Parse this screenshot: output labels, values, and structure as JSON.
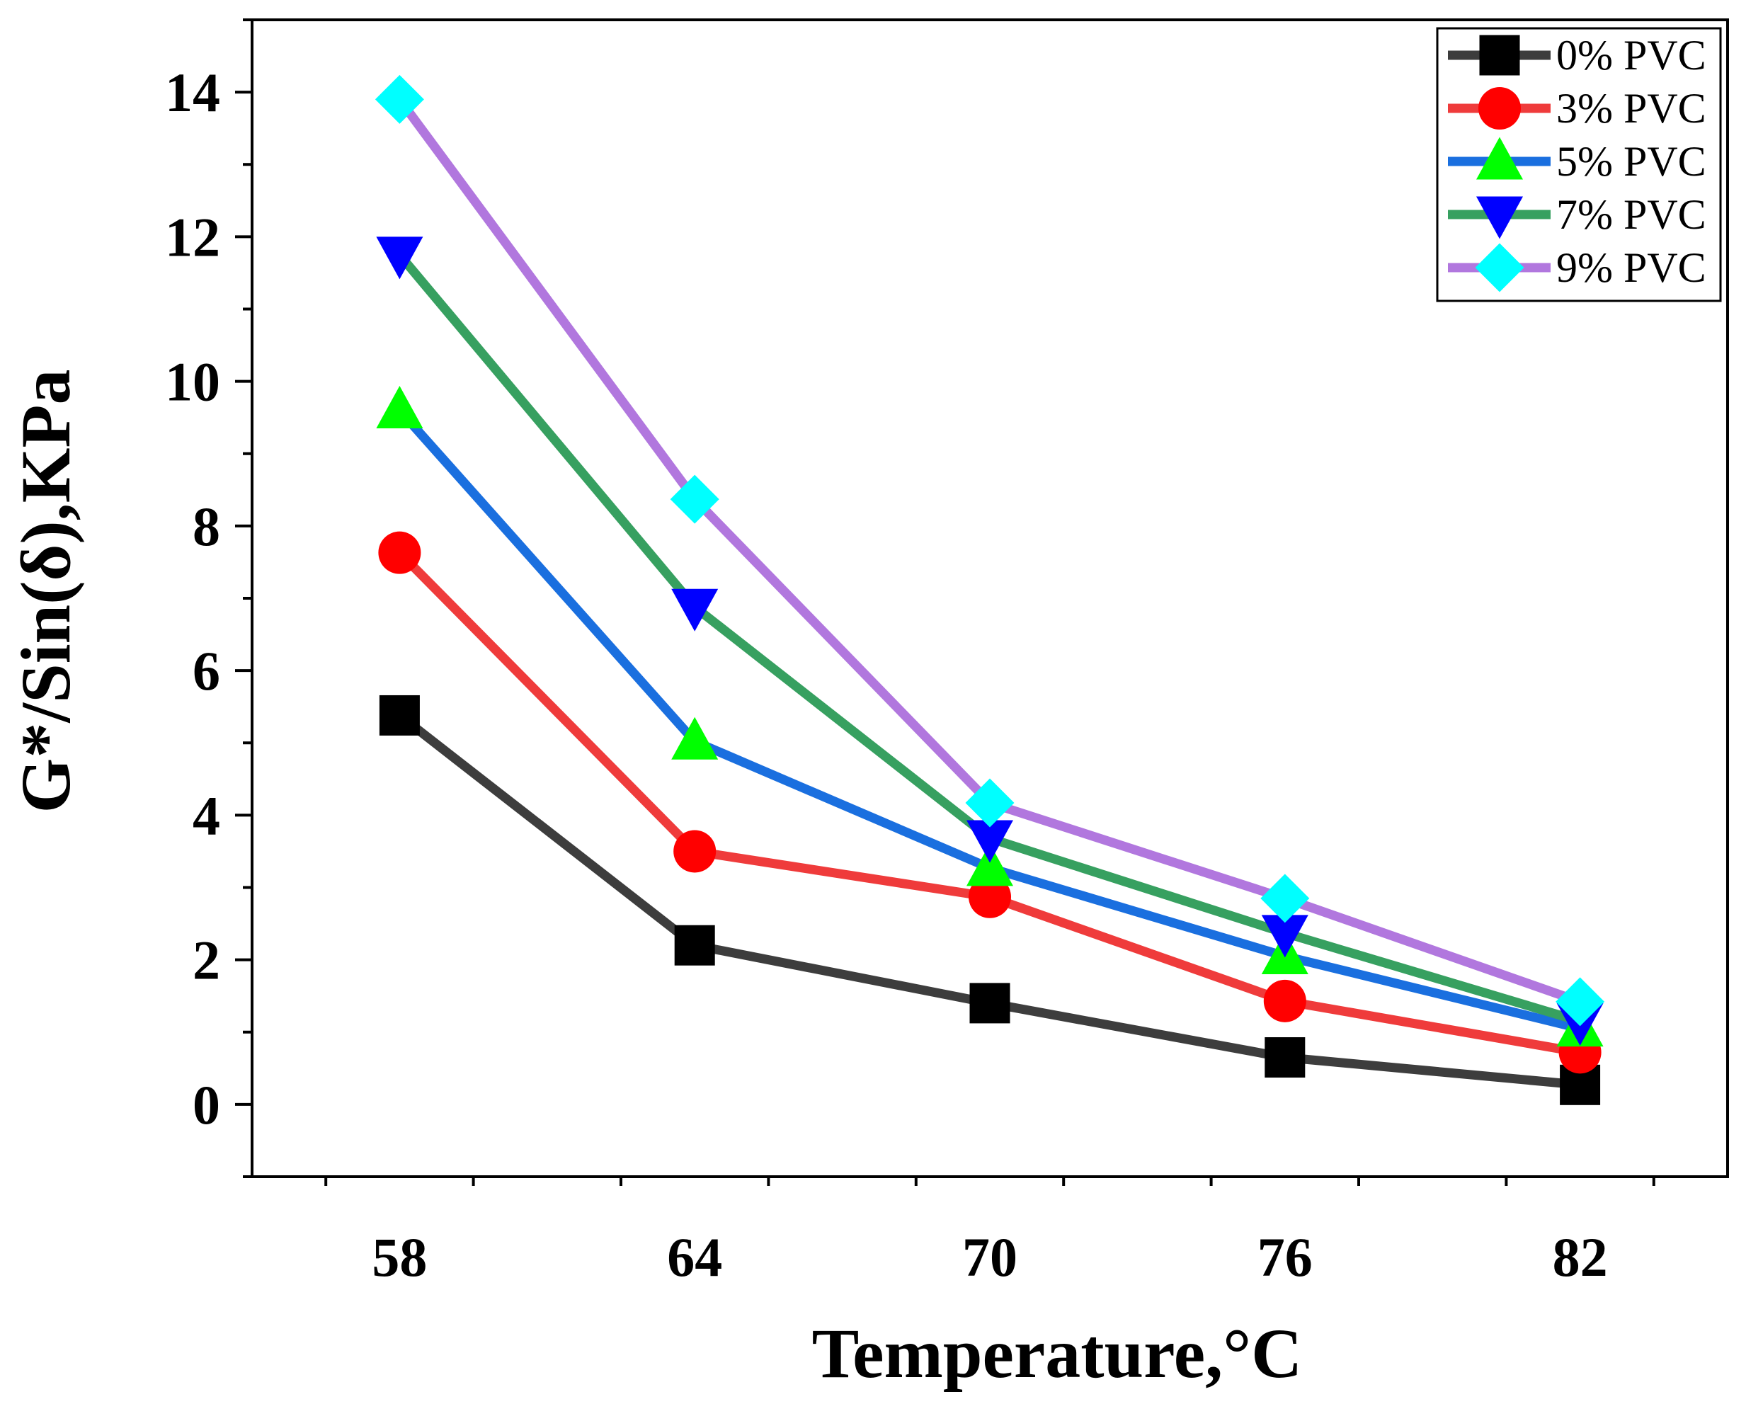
{
  "chart_data": {
    "type": "line",
    "title": "",
    "xlabel": "Temperature,°C",
    "ylabel": "G*/Sin(δ),KPa",
    "categories": [
      "58",
      "64",
      "70",
      "76",
      "82"
    ],
    "x": [
      58,
      64,
      70,
      76,
      82
    ],
    "xlim": [
      55,
      85
    ],
    "ylim": [
      -1,
      15
    ],
    "yticks": [
      0,
      2,
      4,
      6,
      8,
      10,
      12,
      14
    ],
    "ytick_labels": [
      "0",
      "2",
      "4",
      "6",
      "8",
      "10",
      "12",
      "14"
    ],
    "grid": false,
    "legend_position": "top-right",
    "series": [
      {
        "name": "0% PVC",
        "values": [
          5.38,
          2.2,
          1.4,
          0.65,
          0.27
        ],
        "color": "#3d3d3d",
        "marker": "square",
        "marker_color": "#000000"
      },
      {
        "name": "3% PVC",
        "values": [
          7.63,
          3.5,
          2.87,
          1.43,
          0.72
        ],
        "color": "#ef3b3b",
        "marker": "circle",
        "marker_color": "#ff0000"
      },
      {
        "name": "5% PVC",
        "values": [
          9.6,
          5.02,
          3.27,
          2.05,
          1.05
        ],
        "color": "#1a6fdf",
        "marker": "triangle-up",
        "marker_color": "#00ff00"
      },
      {
        "name": "7% PVC",
        "values": [
          11.75,
          6.88,
          3.68,
          2.37,
          1.15
        ],
        "color": "#37a060",
        "marker": "triangle-down",
        "marker_color": "#0000ff"
      },
      {
        "name": "9% PVC",
        "values": [
          13.9,
          8.37,
          4.17,
          2.85,
          1.42
        ],
        "color": "#b177de",
        "marker": "diamond",
        "marker_color": "#00ffff"
      }
    ]
  }
}
